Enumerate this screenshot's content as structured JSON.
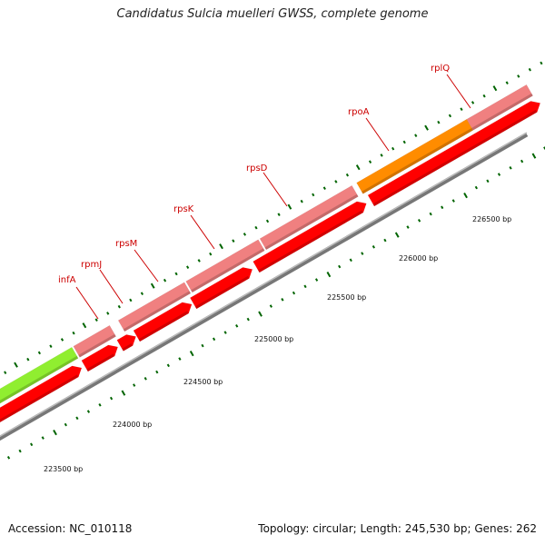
{
  "title": "Candidatus Sulcia muelleri GWSS, complete genome",
  "footer": {
    "accession": "Accession: NC_010118",
    "summary": "Topology: circular; Length: 245,530 bp; Genes: 262"
  },
  "gene_labels": [
    "infA",
    "rpmJ",
    "rpsM",
    "rpsK",
    "rpsD",
    "rpoA",
    "rplQ"
  ],
  "bp_labels": [
    "223500 bp",
    "224000 bp",
    "224500 bp",
    "225000 bp",
    "225500 bp",
    "226000 bp",
    "226500 bp"
  ],
  "colors": {
    "forward_cds": "#f08080",
    "reverse_cds": "#ff0000",
    "highlight_orange": "#ff8c00",
    "highlight_green": "#90ee30",
    "other_blue": "#1010ff",
    "other_steel": "#4682b4",
    "backbone": "#888888",
    "ticks": "#006400"
  }
}
